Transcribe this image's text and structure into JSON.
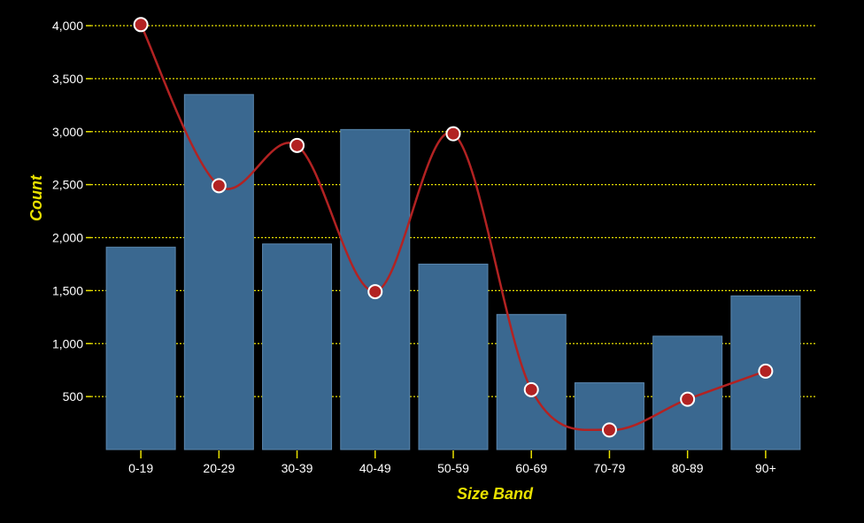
{
  "chart_data": {
    "type": "bar",
    "xlabel": "Size Band",
    "ylabel": "Count",
    "categories": [
      "0-19",
      "20-29",
      "30-39",
      "40-49",
      "50-59",
      "60-69",
      "70-79",
      "80-89",
      "90+"
    ],
    "series": [
      {
        "type": "bar",
        "values": [
          1910,
          3350,
          1940,
          3020,
          1750,
          1275,
          630,
          1070,
          1450
        ]
      },
      {
        "type": "line",
        "smooth": true,
        "values": [
          4010,
          2490,
          2870,
          1490,
          2980,
          565,
          185,
          475,
          740
        ]
      }
    ],
    "ylim": [
      0,
      4000
    ],
    "yticks": [
      500,
      1000,
      1500,
      2000,
      2500,
      3000,
      3500,
      4000
    ],
    "ytick_labels": [
      "500",
      "1,000",
      "1,500",
      "2,000",
      "2,500",
      "3,000",
      "3,500",
      "4,000"
    ],
    "grid": true,
    "colors": {
      "background": "#000000",
      "bar": "#3a6890",
      "bar_stroke": "#5a86ad",
      "line": "#b22222",
      "marker_fill": "#b22222",
      "marker_stroke": "#ffffff",
      "grid": "#e8e000",
      "axis_title": "#e8e000",
      "tick_label": "#ffffff",
      "tick_mark": "#e8e000"
    }
  }
}
